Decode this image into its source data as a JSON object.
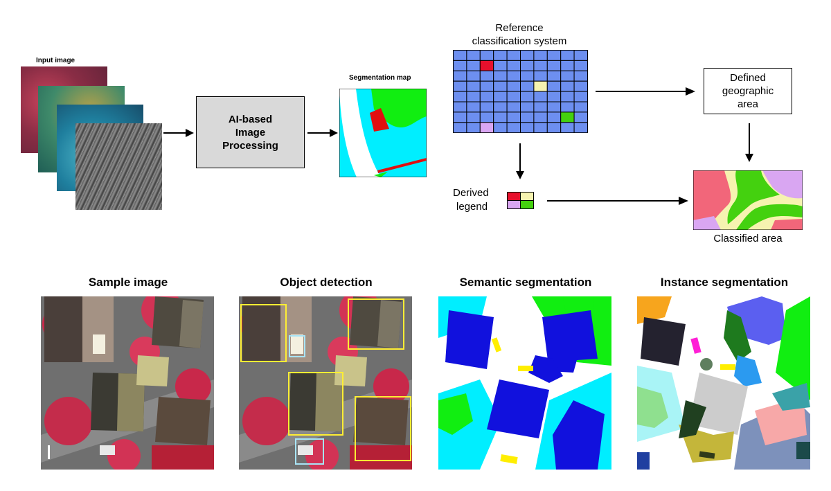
{
  "pipeline": {
    "input_image_label": "Input image",
    "processing_label": "AI-based\nImage\nProcessing",
    "segmentation_map_label": "Segmentation map",
    "reference_label_line1": "Reference",
    "reference_label_line2": "classification system",
    "geographic_area_label": "Defined\ngeographic\narea",
    "derived_legend_label_line1": "Derived",
    "derived_legend_label_line2": "legend",
    "classified_area_label": "Classified area"
  },
  "panels": {
    "sample_image_title": "Sample image",
    "object_detection_title": "Object detection",
    "semantic_segmentation_title": "Semantic segmentation",
    "instance_segmentation_title": "Instance segmentation"
  },
  "colors": {
    "grid_blue": "#6d8ff0",
    "legend_red": "#e8102c",
    "legend_cream": "#f6f3b0",
    "legend_lilac": "#d9a6f2",
    "legend_green": "#44d10f",
    "cyan": "#00eeff",
    "blue": "#1111dd",
    "green": "#11ee11",
    "yellow": "#ffee00"
  }
}
